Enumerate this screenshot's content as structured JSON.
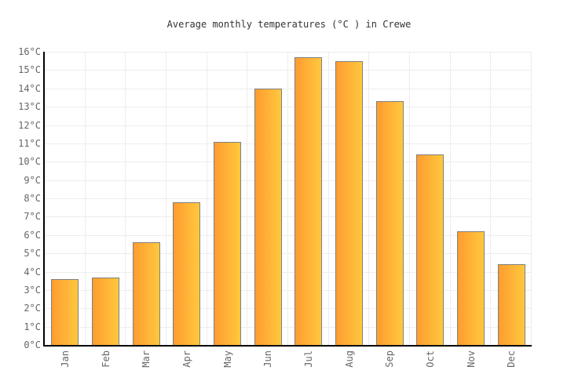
{
  "chart_data": {
    "type": "bar",
    "title": "Average monthly temperatures (°C ) in Crewe",
    "categories": [
      "Jan",
      "Feb",
      "Mar",
      "Apr",
      "May",
      "Jun",
      "Jul",
      "Aug",
      "Sep",
      "Oct",
      "Nov",
      "Dec"
    ],
    "values": [
      3.6,
      3.7,
      5.6,
      7.8,
      11.1,
      14.0,
      15.7,
      15.5,
      13.3,
      10.4,
      6.2,
      4.4
    ],
    "unit": "°C",
    "ylabel_suffix": "°C",
    "ylim": [
      0,
      16
    ],
    "ytick_step": 1,
    "grid": true,
    "legend": "none",
    "colors": {
      "bar_gradient_left": "#FF9C31",
      "bar_gradient_right": "#FFC83D",
      "bar_border": "#7f7f7f",
      "axis": "#000000",
      "gridline": "#ededed",
      "tick_label": "#666666",
      "title": "#333333",
      "background": "#ffffff"
    }
  }
}
